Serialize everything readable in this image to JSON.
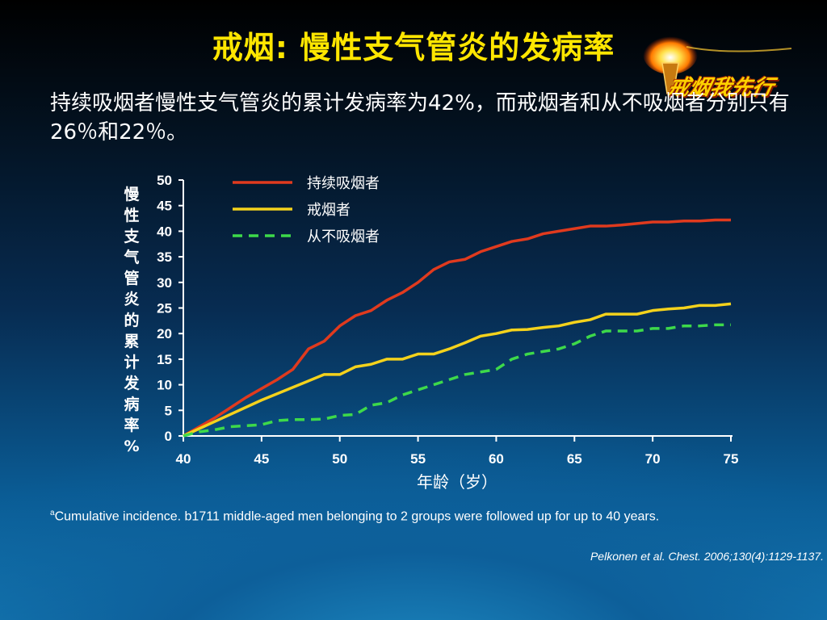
{
  "slide": {
    "title": "戒烟: 慢性支气管炎的发病率",
    "subtitle": "持续吸烟者慢性支气管炎的累计发病率为42%，而戒烟者和从不吸烟者分别只有26％和22％。",
    "logo_text": "戒烟我先行",
    "footnote_sup": "a",
    "footnote": "Cumulative incidence. b1711 middle-aged men belonging to 2 groups were followed up for up to 40 years.",
    "citation": "Pelkonen et al. Chest. 2006;130(4):1129-1137."
  },
  "chart_data": {
    "type": "line",
    "xlabel": "年龄（岁）",
    "ylabel": "慢性支气管炎的累计发病率%",
    "ylabel_chars": [
      "慢",
      "性",
      "支",
      "气",
      "管",
      "炎",
      "的",
      "累",
      "计",
      "发",
      "病",
      "率",
      "%"
    ],
    "xlim": [
      40,
      75
    ],
    "ylim": [
      0,
      50
    ],
    "xticks": [
      40,
      45,
      50,
      55,
      60,
      65,
      70,
      75
    ],
    "yticks": [
      0,
      5,
      10,
      15,
      20,
      25,
      30,
      35,
      40,
      45,
      50
    ],
    "grid": false,
    "legend_position": "top-left",
    "series": [
      {
        "name": "持续吸烟者",
        "color": "#e03a1e",
        "style": "solid",
        "x": [
          40,
          42,
          44,
          46,
          47,
          48,
          49,
          50,
          51,
          52,
          53,
          54,
          55,
          56,
          57,
          58,
          59,
          60,
          61,
          62,
          63,
          64,
          65,
          66,
          67,
          68,
          69,
          70,
          71,
          72,
          73,
          74,
          75
        ],
        "y": [
          0,
          3.5,
          7.5,
          11,
          13,
          17,
          18.5,
          21.5,
          23.5,
          24.5,
          26.5,
          28,
          30,
          32.5,
          34,
          34.5,
          36,
          37,
          38,
          38.5,
          39.5,
          40,
          40.5,
          41,
          41,
          41.2,
          41.5,
          41.8,
          41.8,
          42,
          42,
          42.2,
          42.2
        ]
      },
      {
        "name": "戒烟者",
        "color": "#f4d21c",
        "style": "solid",
        "x": [
          40,
          45,
          49,
          50,
          51,
          52,
          53,
          54,
          55,
          56,
          57,
          58,
          59,
          60,
          61,
          62,
          63,
          64,
          65,
          66,
          67,
          68,
          69,
          70,
          71,
          72,
          73,
          74,
          75
        ],
        "y": [
          0,
          7,
          12,
          12,
          13.5,
          14,
          15,
          15,
          16,
          16,
          17,
          18.2,
          19.5,
          20,
          20.7,
          20.8,
          21.2,
          21.5,
          22.2,
          22.7,
          23.8,
          23.8,
          23.8,
          24.5,
          24.8,
          25,
          25.5,
          25.5,
          25.8
        ]
      },
      {
        "name": "从不吸烟者",
        "color": "#3dd94a",
        "style": "dashed",
        "x": [
          40,
          41,
          42,
          43,
          44,
          45,
          46,
          47,
          48,
          49,
          50,
          51,
          52,
          53,
          54,
          55,
          56,
          57,
          58,
          59,
          60,
          61,
          62,
          63,
          64,
          65,
          66,
          67,
          68,
          69,
          70,
          71,
          72,
          73,
          74,
          75
        ],
        "y": [
          0,
          0.8,
          1.2,
          1.8,
          2,
          2.2,
          3,
          3.2,
          3.2,
          3.3,
          4,
          4.2,
          6,
          6.5,
          8,
          9,
          10,
          11,
          12,
          12.5,
          13,
          15,
          16,
          16.5,
          17,
          18,
          19.5,
          20.5,
          20.5,
          20.5,
          21,
          21,
          21.5,
          21.5,
          21.7,
          21.7
        ]
      }
    ]
  }
}
